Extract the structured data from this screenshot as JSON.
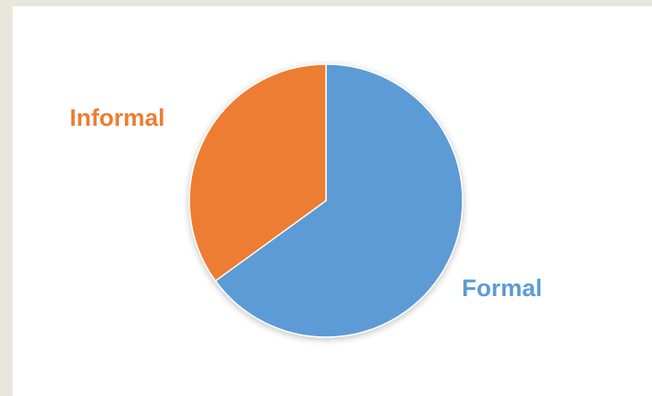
{
  "chart_data": {
    "type": "pie",
    "title": "",
    "slices": [
      {
        "label": "Formal",
        "value": 65,
        "color": "#5b9bd5"
      },
      {
        "label": "Informal",
        "value": 35,
        "color": "#ed7d31"
      }
    ],
    "start_angle_deg": 0,
    "direction": "clockwise",
    "labels_outside": true,
    "legend": "none"
  }
}
